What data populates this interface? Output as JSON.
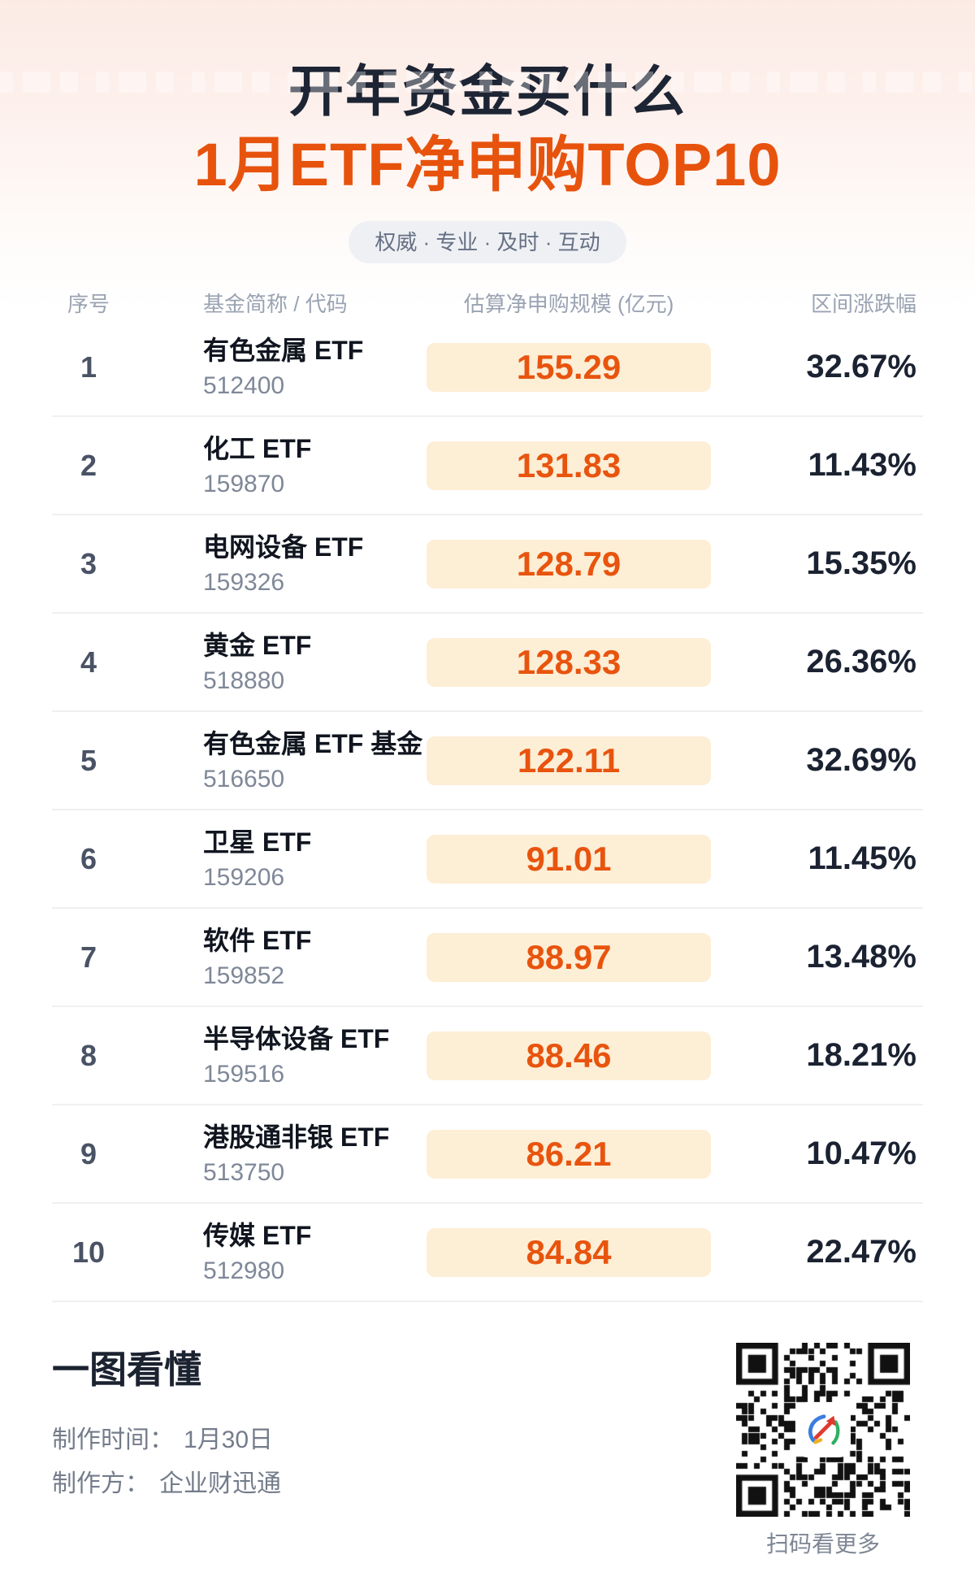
{
  "header": {
    "title_line1": "开年资金买什么",
    "title_line2": "1月ETF净申购TOP10",
    "tagline": "权威 · 专业 · 及时 · 互动"
  },
  "table": {
    "columns": {
      "index": "序号",
      "fund": "基金简称 / 代码",
      "scale": "估算净申购规模 (亿元)",
      "change": "区间涨跌幅"
    },
    "rows": [
      {
        "rank": "1",
        "name": "有色金属 ETF",
        "code": "512400",
        "scale": "155.29",
        "change": "32.67%"
      },
      {
        "rank": "2",
        "name": "化工 ETF",
        "code": "159870",
        "scale": "131.83",
        "change": "11.43%"
      },
      {
        "rank": "3",
        "name": "电网设备 ETF",
        "code": "159326",
        "scale": "128.79",
        "change": "15.35%"
      },
      {
        "rank": "4",
        "name": "黄金 ETF",
        "code": "518880",
        "scale": "128.33",
        "change": "26.36%"
      },
      {
        "rank": "5",
        "name": "有色金属 ETF 基金",
        "code": "516650",
        "scale": "122.11",
        "change": "32.69%"
      },
      {
        "rank": "6",
        "name": "卫星 ETF",
        "code": "159206",
        "scale": "91.01",
        "change": "11.45%"
      },
      {
        "rank": "7",
        "name": "软件 ETF",
        "code": "159852",
        "scale": "88.97",
        "change": "13.48%"
      },
      {
        "rank": "8",
        "name": "半导体设备 ETF",
        "code": "159516",
        "scale": "88.46",
        "change": "18.21%"
      },
      {
        "rank": "9",
        "name": "港股通非银 ETF",
        "code": "513750",
        "scale": "86.21",
        "change": "10.47%"
      },
      {
        "rank": "10",
        "name": "传媒 ETF",
        "code": "512980",
        "scale": "84.84",
        "change": "22.47%"
      }
    ]
  },
  "footer": {
    "headline": "一图看懂",
    "made_date_label": "制作时间：",
    "made_date": "1月30日",
    "producer_label": "制作方：",
    "producer": "企业财迅通",
    "qr_caption": "扫码看更多",
    "qr_center_icon": "app-logo-icon"
  },
  "colors": {
    "accent_orange": "#e7530d",
    "badge_value_orange": "#e8540e",
    "badge_bg_cream": "#fdeed6",
    "title_navy": "#1d2433",
    "top_gradient_pink": "#fcebe5",
    "pill_bg": "#eef0f4",
    "header_gray": "#9aa3b2",
    "separator": "#f0f0f1"
  },
  "chart_data": {
    "type": "table",
    "title": "开年资金买什么 — 1月ETF净申购TOP10",
    "subtitle": "权威 · 专业 · 及时 · 互动",
    "columns": [
      "序号",
      "基金简称",
      "代码",
      "估算净申购规模(亿元)",
      "区间涨跌幅(%)"
    ],
    "rows": [
      [
        1,
        "有色金属 ETF",
        "512400",
        155.29,
        32.67
      ],
      [
        2,
        "化工 ETF",
        "159870",
        131.83,
        11.43
      ],
      [
        3,
        "电网设备 ETF",
        "159326",
        128.79,
        15.35
      ],
      [
        4,
        "黄金 ETF",
        "518880",
        128.33,
        26.36
      ],
      [
        5,
        "有色金属 ETF 基金",
        "516650",
        122.11,
        32.69
      ],
      [
        6,
        "卫星 ETF",
        "159206",
        91.01,
        11.45
      ],
      [
        7,
        "软件 ETF",
        "159852",
        88.97,
        13.48
      ],
      [
        8,
        "半导体设备 ETF",
        "159516",
        88.46,
        18.21
      ],
      [
        9,
        "港股通非银 ETF",
        "513750",
        86.21,
        10.47
      ],
      [
        10,
        "传媒 ETF",
        "512980",
        84.84,
        22.47
      ]
    ],
    "units": {
      "scale": "亿元",
      "change": "%"
    },
    "source_date": "1月30日",
    "producer": "企业财迅通"
  }
}
